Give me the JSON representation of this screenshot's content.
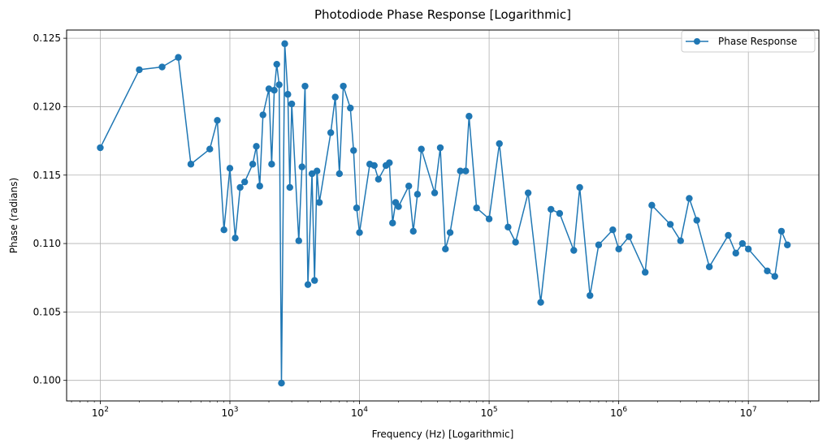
{
  "chart_data": {
    "type": "line",
    "title": "Photodiode Phase Response [Logarithmic]",
    "xlabel": "Frequency (Hz) [Logarithmic]",
    "ylabel": "Phase (radians)",
    "xscale": "log",
    "xlim": [
      55,
      35000000
    ],
    "ylim": [
      0.0985,
      0.1256
    ],
    "grid": true,
    "legend_position": "upper right",
    "color": "#1f77b4",
    "x_tick_labels": [
      {
        "base": "10",
        "exp": "2",
        "value": 100
      },
      {
        "base": "10",
        "exp": "3",
        "value": 1000
      },
      {
        "base": "10",
        "exp": "4",
        "value": 10000
      },
      {
        "base": "10",
        "exp": "5",
        "value": 100000
      },
      {
        "base": "10",
        "exp": "6",
        "value": 1000000
      },
      {
        "base": "10",
        "exp": "7",
        "value": 10000000
      }
    ],
    "y_ticks": [
      "0.100",
      "0.105",
      "0.110",
      "0.115",
      "0.120",
      "0.125"
    ],
    "series": [
      {
        "name": "Phase Response",
        "points": [
          [
            100,
            0.117
          ],
          [
            200,
            0.1227
          ],
          [
            300,
            0.1229
          ],
          [
            400,
            0.1236
          ],
          [
            500,
            0.1158
          ],
          [
            700,
            0.1169
          ],
          [
            800,
            0.119
          ],
          [
            900,
            0.111
          ],
          [
            1000,
            0.1155
          ],
          [
            1100,
            0.1104
          ],
          [
            1200,
            0.1141
          ],
          [
            1300,
            0.1145
          ],
          [
            1500,
            0.1158
          ],
          [
            1600,
            0.1171
          ],
          [
            1700,
            0.1142
          ],
          [
            1800,
            0.1194
          ],
          [
            2000,
            0.1213
          ],
          [
            2100,
            0.1158
          ],
          [
            2200,
            0.1212
          ],
          [
            2300,
            0.1231
          ],
          [
            2400,
            0.1216
          ],
          [
            2500,
            0.0998
          ],
          [
            2650,
            0.1246
          ],
          [
            2800,
            0.1209
          ],
          [
            2900,
            0.1141
          ],
          [
            3000,
            0.1202
          ],
          [
            3400,
            0.1102
          ],
          [
            3600,
            0.1156
          ],
          [
            3800,
            0.1215
          ],
          [
            4000,
            0.107
          ],
          [
            4300,
            0.1151
          ],
          [
            4500,
            0.1073
          ],
          [
            4700,
            0.1153
          ],
          [
            4900,
            0.113
          ],
          [
            6000,
            0.1181
          ],
          [
            6500,
            0.1207
          ],
          [
            7000,
            0.1151
          ],
          [
            7500,
            0.1215
          ],
          [
            8500,
            0.1199
          ],
          [
            9000,
            0.1168
          ],
          [
            9500,
            0.1126
          ],
          [
            10000,
            0.1108
          ],
          [
            12000,
            0.1158
          ],
          [
            13000,
            0.1157
          ],
          [
            14000,
            0.1147
          ],
          [
            16000,
            0.1157
          ],
          [
            17000,
            0.1159
          ],
          [
            18000,
            0.1115
          ],
          [
            19000,
            0.113
          ],
          [
            20000,
            0.1127
          ],
          [
            24000,
            0.1142
          ],
          [
            26000,
            0.1109
          ],
          [
            28000,
            0.1136
          ],
          [
            30000,
            0.1169
          ],
          [
            38000,
            0.1137
          ],
          [
            42000,
            0.117
          ],
          [
            46000,
            0.1096
          ],
          [
            50000,
            0.1108
          ],
          [
            60000,
            0.1153
          ],
          [
            66000,
            0.1153
          ],
          [
            70000,
            0.1193
          ],
          [
            80000,
            0.1126
          ],
          [
            100000,
            0.1118
          ],
          [
            120000,
            0.1173
          ],
          [
            140000,
            0.1112
          ],
          [
            160000,
            0.1101
          ],
          [
            200000,
            0.1137
          ],
          [
            250000,
            0.1057
          ],
          [
            300000,
            0.1125
          ],
          [
            350000,
            0.1122
          ],
          [
            450000,
            0.1095
          ],
          [
            500000,
            0.1141
          ],
          [
            600000,
            0.1062
          ],
          [
            700000,
            0.1099
          ],
          [
            900000,
            0.111
          ],
          [
            1000000,
            0.1096
          ],
          [
            1200000,
            0.1105
          ],
          [
            1600000,
            0.1079
          ],
          [
            1800000,
            0.1128
          ],
          [
            2500000,
            0.1114
          ],
          [
            3000000,
            0.1102
          ],
          [
            3500000,
            0.1133
          ],
          [
            4000000,
            0.1117
          ],
          [
            5000000,
            0.1083
          ],
          [
            7000000,
            0.1106
          ],
          [
            8000000,
            0.1093
          ],
          [
            9000000,
            0.11
          ],
          [
            10000000,
            0.1096
          ],
          [
            14000000,
            0.108
          ],
          [
            16000000,
            0.1076
          ],
          [
            18000000,
            0.1109
          ],
          [
            20000000,
            0.1099
          ]
        ]
      }
    ]
  }
}
